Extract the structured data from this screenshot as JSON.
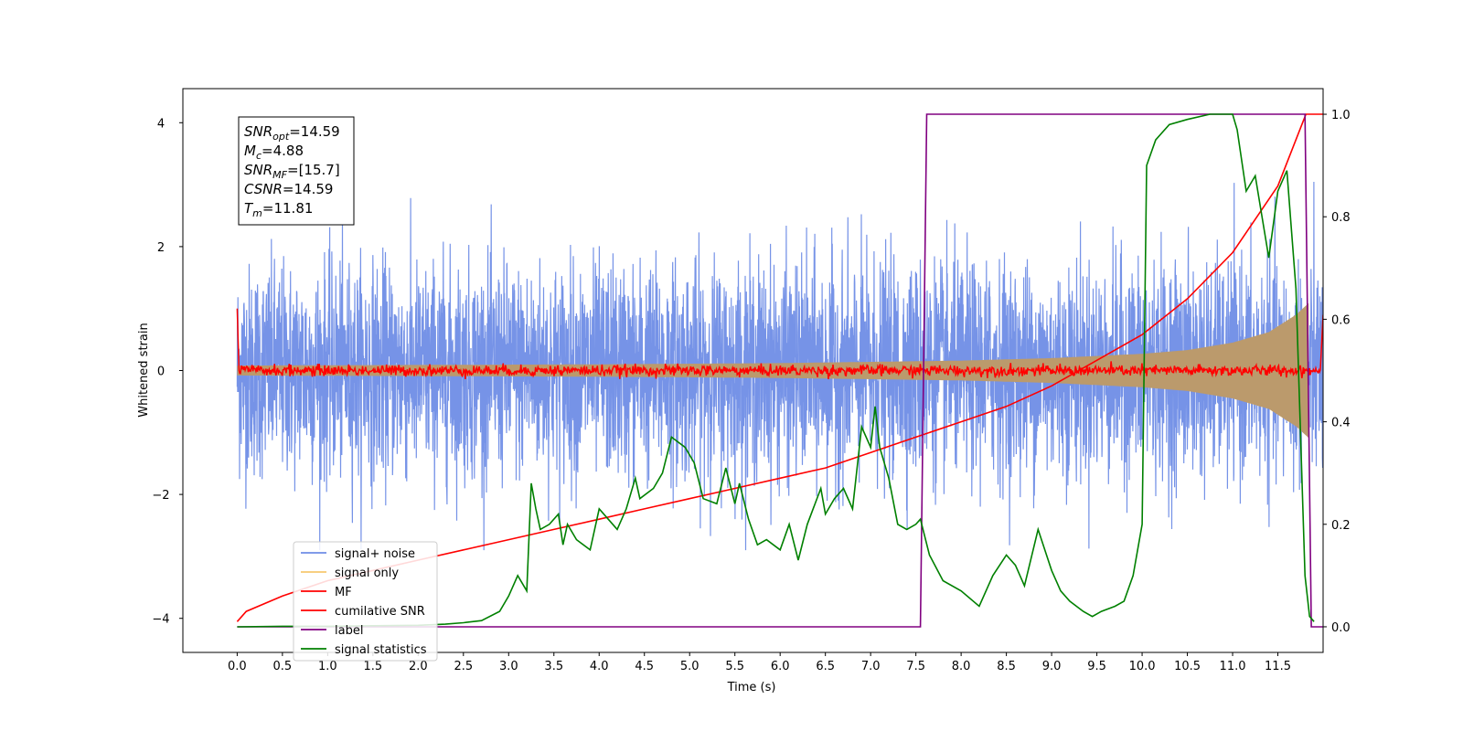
{
  "chart_data": {
    "type": "line",
    "title": "",
    "xlabel": "Time (s)",
    "ylabel": "Whitened strain",
    "xlim": [
      -0.6,
      12.0
    ],
    "ylim": [
      -4.55,
      4.55
    ],
    "y2lim": [
      -0.05,
      1.05
    ],
    "xticks": [
      "0.0",
      "0.5",
      "1.0",
      "1.5",
      "2.0",
      "2.5",
      "3.0",
      "3.5",
      "4.0",
      "4.5",
      "5.0",
      "5.5",
      "6.0",
      "6.5",
      "7.0",
      "7.5",
      "8.0",
      "8.5",
      "9.0",
      "9.5",
      "10.0",
      "10.5",
      "11.0",
      "11.5"
    ],
    "yticks": [
      "4",
      "2",
      "0",
      "−2",
      "−4"
    ],
    "y2ticks": [
      "1.0",
      "0.8",
      "0.6",
      "0.4",
      "0.2",
      "0.0"
    ],
    "grid": false,
    "legend_position": "lower-left",
    "annotation_lines": [
      {
        "sym": "SNR",
        "sub": "opt",
        "value": "=14.59"
      },
      {
        "sym": "M",
        "sub": "c",
        "value": "=4.88"
      },
      {
        "sym": "SNR",
        "sub": "MF",
        "value": "=[15.7]"
      },
      {
        "sym": "CSNR",
        "sub": "",
        "value": "=14.59"
      },
      {
        "sym": "T",
        "sub": "m",
        "value": "=11.81"
      }
    ],
    "series": [
      {
        "name": "signal+ noise",
        "color": "#6f8de6",
        "axis": "left",
        "style": "noise",
        "amplitude_range": [
          -2.9,
          4.1
        ]
      },
      {
        "name": "signal only",
        "color": "#f7c86f",
        "axis": "left",
        "style": "chirp",
        "envelope": {
          "x": [
            0.0,
            2.0,
            4.0,
            6.0,
            8.0,
            9.0,
            10.0,
            10.5,
            11.0,
            11.4,
            11.7,
            11.85
          ],
          "y": [
            0.08,
            0.09,
            0.1,
            0.12,
            0.16,
            0.2,
            0.27,
            0.33,
            0.45,
            0.62,
            0.9,
            1.1
          ]
        }
      },
      {
        "name": "MF",
        "color": "#ff0000",
        "axis": "left",
        "style": "mf",
        "x": [
          0.0,
          0.02,
          11.85,
          11.98,
          12.0
        ],
        "y": [
          1.0,
          0.0,
          0.0,
          0.0,
          0.9
        ]
      },
      {
        "name": "cumilative SNR",
        "color": "#ff0000",
        "axis": "right",
        "x": [
          0.0,
          0.1,
          0.5,
          1.0,
          1.5,
          2.0,
          2.5,
          3.0,
          3.5,
          4.0,
          4.5,
          5.0,
          5.5,
          6.0,
          6.5,
          7.0,
          7.5,
          8.0,
          8.5,
          9.0,
          9.5,
          10.0,
          10.5,
          11.0,
          11.5,
          11.81,
          12.0
        ],
        "y": [
          0.01,
          0.03,
          0.06,
          0.09,
          0.11,
          0.13,
          0.15,
          0.17,
          0.19,
          0.21,
          0.23,
          0.25,
          0.27,
          0.29,
          0.31,
          0.34,
          0.37,
          0.4,
          0.43,
          0.47,
          0.52,
          0.57,
          0.64,
          0.73,
          0.86,
          1.0,
          1.0
        ]
      },
      {
        "name": "label",
        "color": "#800080",
        "axis": "right",
        "x": [
          0.0,
          7.55,
          7.62,
          11.8,
          11.87,
          12.0
        ],
        "y": [
          0.0,
          0.0,
          1.0,
          1.0,
          0.0,
          0.0
        ]
      },
      {
        "name": "signal statistics",
        "color": "#008000",
        "axis": "right",
        "x": [
          0.0,
          0.5,
          1.0,
          1.5,
          2.0,
          2.3,
          2.5,
          2.7,
          2.9,
          3.0,
          3.1,
          3.2,
          3.25,
          3.3,
          3.35,
          3.45,
          3.55,
          3.6,
          3.65,
          3.75,
          3.9,
          4.0,
          4.1,
          4.2,
          4.3,
          4.4,
          4.45,
          4.6,
          4.7,
          4.8,
          4.95,
          5.05,
          5.15,
          5.3,
          5.4,
          5.5,
          5.55,
          5.65,
          5.75,
          5.85,
          6.0,
          6.1,
          6.2,
          6.3,
          6.45,
          6.5,
          6.6,
          6.7,
          6.8,
          6.9,
          7.0,
          7.05,
          7.1,
          7.2,
          7.3,
          7.4,
          7.5,
          7.55,
          7.65,
          7.8,
          8.0,
          8.2,
          8.35,
          8.5,
          8.6,
          8.7,
          8.85,
          9.0,
          9.1,
          9.2,
          9.35,
          9.45,
          9.55,
          9.7,
          9.8,
          9.9,
          10.0,
          10.05,
          10.15,
          10.3,
          10.5,
          10.75,
          11.0,
          11.05,
          11.15,
          11.25,
          11.4,
          11.5,
          11.6,
          11.7,
          11.8,
          11.85,
          11.9
        ],
        "y": [
          0.0,
          0.001,
          0.001,
          0.002,
          0.003,
          0.005,
          0.008,
          0.012,
          0.03,
          0.06,
          0.1,
          0.07,
          0.28,
          0.23,
          0.19,
          0.2,
          0.22,
          0.16,
          0.2,
          0.17,
          0.15,
          0.23,
          0.21,
          0.19,
          0.23,
          0.29,
          0.25,
          0.27,
          0.3,
          0.37,
          0.35,
          0.32,
          0.25,
          0.24,
          0.31,
          0.24,
          0.28,
          0.21,
          0.16,
          0.17,
          0.15,
          0.2,
          0.13,
          0.2,
          0.27,
          0.22,
          0.25,
          0.27,
          0.23,
          0.39,
          0.35,
          0.43,
          0.35,
          0.29,
          0.2,
          0.19,
          0.2,
          0.21,
          0.14,
          0.09,
          0.07,
          0.04,
          0.1,
          0.14,
          0.12,
          0.08,
          0.19,
          0.11,
          0.07,
          0.05,
          0.03,
          0.02,
          0.03,
          0.04,
          0.05,
          0.1,
          0.2,
          0.9,
          0.95,
          0.98,
          0.99,
          1.0,
          1.0,
          0.97,
          0.85,
          0.88,
          0.72,
          0.85,
          0.89,
          0.66,
          0.1,
          0.02,
          0.01
        ]
      }
    ]
  }
}
